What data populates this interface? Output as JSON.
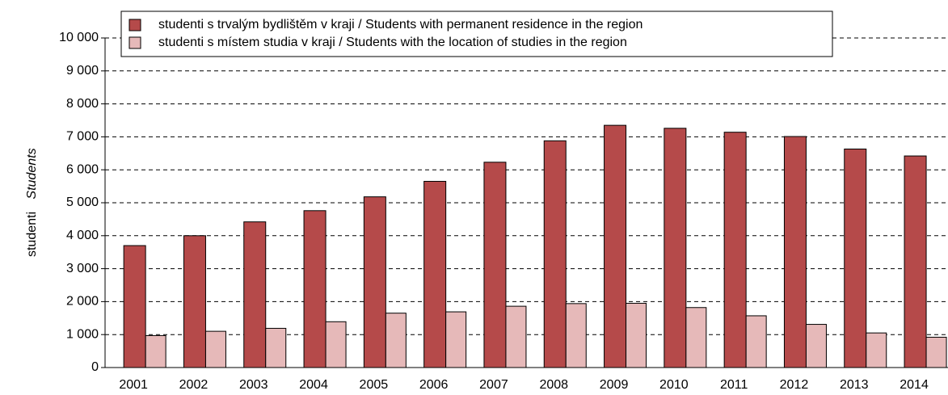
{
  "chart_data": {
    "type": "bar",
    "y_label": "studenti",
    "y_label_en": "Students",
    "categories": [
      "2001",
      "2002",
      "2003",
      "2004",
      "2005",
      "2006",
      "2007",
      "2008",
      "2009",
      "2010",
      "2011",
      "2012",
      "2013",
      "2014"
    ],
    "series": [
      {
        "name": "studenti s trvalým bydlištěm v kraji / Students with permanent residence in the region",
        "color": "#b54a4a",
        "values": [
          3700,
          4000,
          4420,
          4760,
          5180,
          5650,
          6230,
          6880,
          7350,
          7260,
          7140,
          7010,
          6630,
          6420
        ]
      },
      {
        "name": "studenti s místem studia v kraji / Students with the location of studies in the region",
        "color": "#e6b9b9",
        "values": [
          970,
          1100,
          1190,
          1390,
          1650,
          1690,
          1860,
          1940,
          1950,
          1820,
          1570,
          1310,
          1050,
          920
        ]
      }
    ],
    "ylim": [
      0,
      10000
    ],
    "yticks": [
      0,
      {
        "value": 1000,
        "label": "1 000"
      },
      {
        "value": 2000,
        "label": "2 000"
      },
      {
        "value": 3000,
        "label": "3 000"
      },
      {
        "value": 4000,
        "label": "4 000"
      },
      {
        "value": 5000,
        "label": "5 000"
      },
      {
        "value": 6000,
        "label": "6 000"
      },
      {
        "value": 7000,
        "label": "7 000"
      },
      {
        "value": 8000,
        "label": "8 000"
      },
      {
        "value": 9000,
        "label": "9 000"
      },
      {
        "value": 10000,
        "label": "10 000"
      }
    ],
    "grid": true,
    "legend": "top"
  }
}
